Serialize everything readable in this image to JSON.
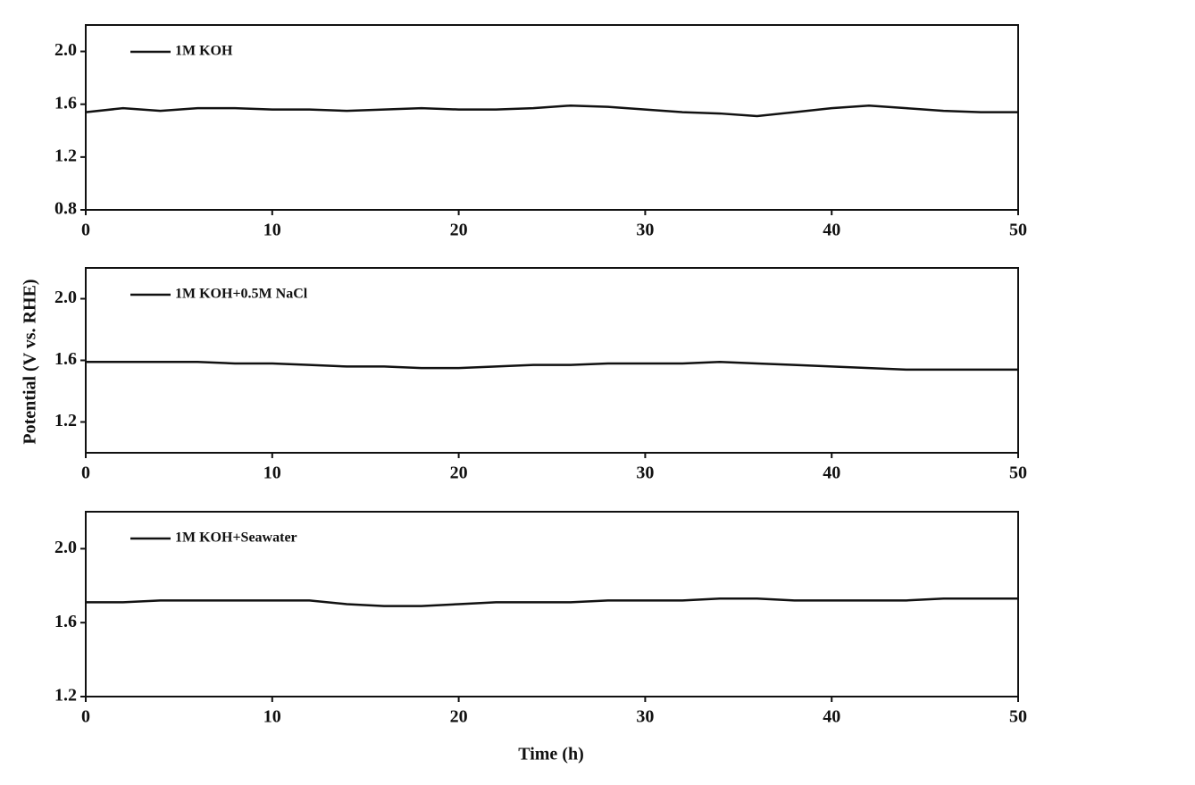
{
  "chart_data": [
    {
      "type": "line",
      "x": [
        0,
        2,
        4,
        6,
        8,
        10,
        12,
        14,
        16,
        18,
        20,
        22,
        24,
        26,
        28,
        30,
        32,
        34,
        36,
        38,
        40,
        42,
        44,
        46,
        48,
        50
      ],
      "series": [
        {
          "name": "1M KOH",
          "color": "#111111",
          "values": [
            1.54,
            1.57,
            1.55,
            1.57,
            1.57,
            1.56,
            1.56,
            1.55,
            1.56,
            1.57,
            1.56,
            1.56,
            1.57,
            1.59,
            1.58,
            1.56,
            1.54,
            1.53,
            1.51,
            1.54,
            1.57,
            1.59,
            1.57,
            1.55,
            1.54,
            1.54
          ]
        }
      ],
      "xlim": [
        0,
        50
      ],
      "xticks": [
        0,
        10,
        20,
        30,
        40,
        50
      ],
      "ylim": [
        0.8,
        2.2
      ],
      "yticks": [
        {
          "value": 0.8,
          "label": "0.8"
        },
        {
          "value": 1.2,
          "label": "1.2"
        },
        {
          "value": 1.6,
          "label": "1.6"
        },
        {
          "value": 2.0,
          "label": "2.0"
        }
      ],
      "legend": "upper left"
    },
    {
      "type": "line",
      "x": [
        0,
        2,
        4,
        6,
        8,
        10,
        12,
        14,
        16,
        18,
        20,
        22,
        24,
        26,
        28,
        30,
        32,
        34,
        36,
        38,
        40,
        42,
        44,
        46,
        48,
        50
      ],
      "ylabel": "Potential (V vs. RHE)",
      "series": [
        {
          "name": "1M KOH+0.5M NaCl",
          "color": "#111111",
          "values": [
            1.59,
            1.59,
            1.59,
            1.59,
            1.58,
            1.58,
            1.57,
            1.56,
            1.56,
            1.55,
            1.55,
            1.56,
            1.57,
            1.57,
            1.58,
            1.58,
            1.58,
            1.59,
            1.58,
            1.57,
            1.56,
            1.55,
            1.54,
            1.54,
            1.54,
            1.54
          ]
        }
      ],
      "xlim": [
        0,
        50
      ],
      "xticks": [
        0,
        10,
        20,
        30,
        40,
        50
      ],
      "ylim": [
        1.0,
        2.2
      ],
      "yticks": [
        {
          "value": 1.2,
          "label": "1.2"
        },
        {
          "value": 1.6,
          "label": "1.6"
        },
        {
          "value": 2.0,
          "label": "2.0"
        }
      ],
      "legend": "upper left"
    },
    {
      "type": "line",
      "x": [
        0,
        2,
        4,
        6,
        8,
        10,
        12,
        14,
        16,
        18,
        20,
        22,
        24,
        26,
        28,
        30,
        32,
        34,
        36,
        38,
        40,
        42,
        44,
        46,
        48,
        50
      ],
      "xlabel": "Time (h)",
      "series": [
        {
          "name": "1M KOH+Seawater",
          "color": "#111111",
          "values": [
            1.71,
            1.71,
            1.72,
            1.72,
            1.72,
            1.72,
            1.72,
            1.7,
            1.69,
            1.69,
            1.7,
            1.71,
            1.71,
            1.71,
            1.72,
            1.72,
            1.72,
            1.73,
            1.73,
            1.72,
            1.72,
            1.72,
            1.72,
            1.73,
            1.73,
            1.73
          ]
        }
      ],
      "xlim": [
        0,
        50
      ],
      "xticks": [
        0,
        10,
        20,
        30,
        40,
        50
      ],
      "ylim": [
        1.2,
        2.2
      ],
      "yticks": [
        {
          "value": 1.2,
          "label": "1.2"
        },
        {
          "value": 1.6,
          "label": "1.6"
        },
        {
          "value": 2.0,
          "label": "2.0"
        }
      ],
      "legend": "upper left"
    }
  ]
}
